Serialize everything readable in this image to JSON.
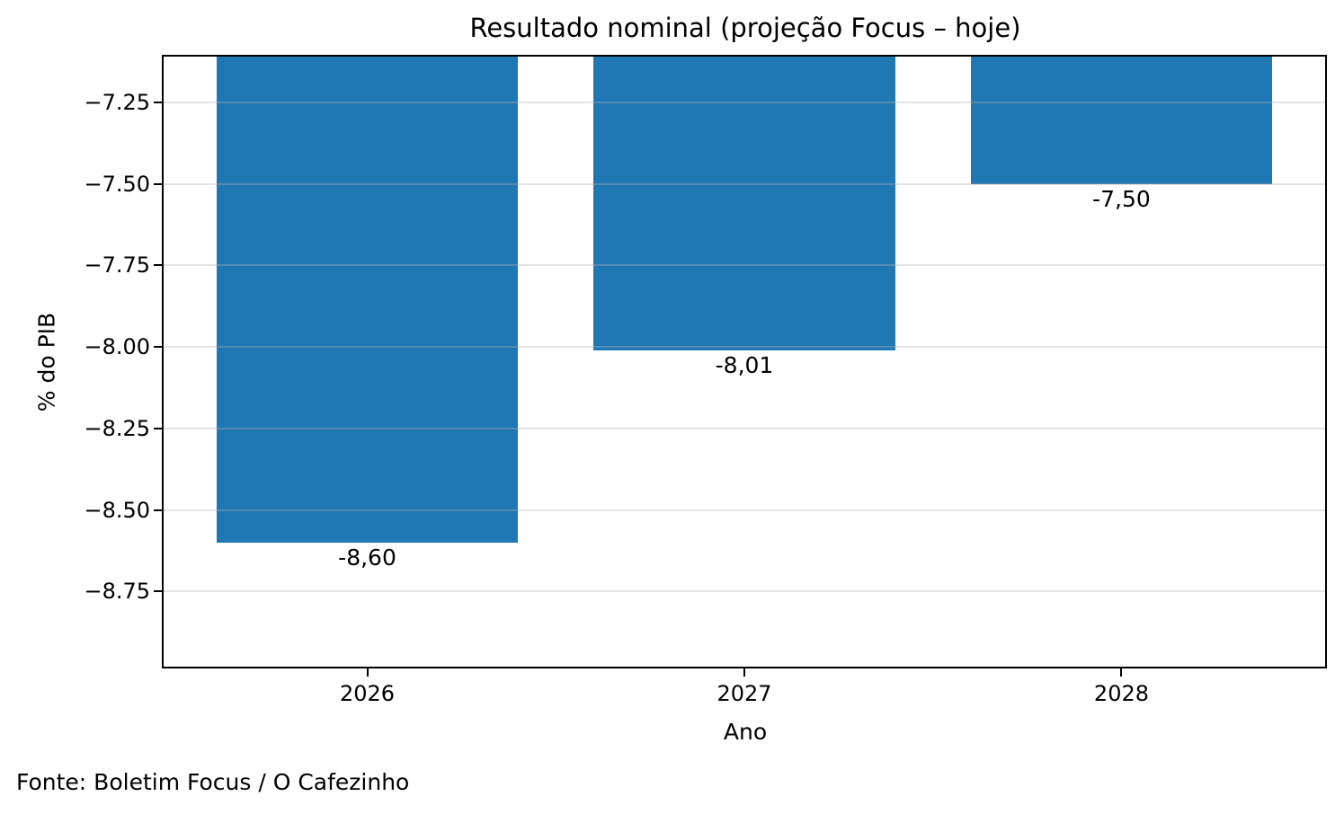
{
  "chart_data": {
    "type": "bar",
    "title": "Resultado nominal (projeção Focus – hoje)",
    "xlabel": "Ano",
    "ylabel": "% do PIB",
    "source_note": "Fonte: Boletim Focus / O Cafezinho",
    "categories": [
      "2026",
      "2027",
      "2028"
    ],
    "values": [
      -8.6,
      -8.01,
      -7.5
    ],
    "bar_labels": [
      "-8,60",
      "-8,01",
      "-7,50"
    ],
    "bar_color": "#1f77b4",
    "grid": "horizontal",
    "grid_color": "#b0b0b0",
    "grid_alpha": 0.35,
    "legend_position": "none",
    "ylim": [
      -8.98,
      -7.11
    ],
    "xlim": [
      -0.54,
      2.54
    ],
    "bar_width_units": 0.8,
    "yticks": [
      {
        "value": -7.25,
        "label": "−7.25"
      },
      {
        "value": -7.5,
        "label": "−7.50"
      },
      {
        "value": -7.75,
        "label": "−7.75"
      },
      {
        "value": -8.0,
        "label": "−8.00"
      },
      {
        "value": -8.25,
        "label": "−8.25"
      },
      {
        "value": -8.5,
        "label": "−8.50"
      },
      {
        "value": -8.75,
        "label": "−8.75"
      }
    ]
  }
}
